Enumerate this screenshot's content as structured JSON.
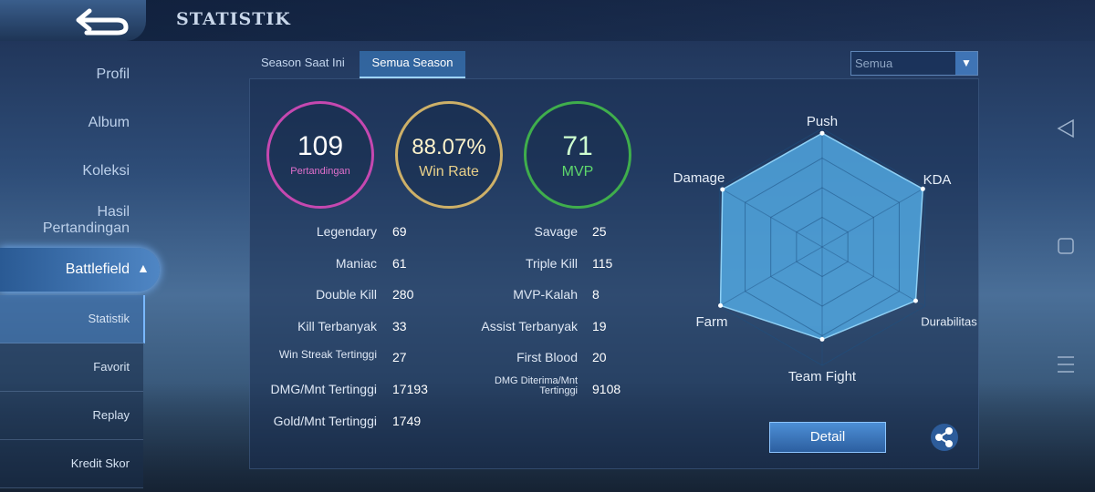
{
  "header": {
    "title": "STATISTIK"
  },
  "sidebar": {
    "items": [
      "Profil",
      "Album",
      "Koleksi",
      "Hasil Pertandingan",
      "Battlefield"
    ],
    "subitems": [
      "Statistik",
      "Favorit",
      "Replay",
      "Kredit Skor"
    ]
  },
  "tabs": [
    "Season Saat Ini",
    "Semua Season"
  ],
  "filter": "Semua",
  "summary": [
    {
      "value": "109",
      "label": "Pertandingan"
    },
    {
      "value": "88.07%",
      "label": "Win Rate"
    },
    {
      "value": "71",
      "label": "MVP"
    }
  ],
  "stats": {
    "left": [
      [
        "Legendary",
        69
      ],
      [
        "Maniac",
        61
      ],
      [
        "Double Kill",
        280
      ],
      [
        "Kill Terbanyak",
        33
      ],
      [
        "Win Streak Tertinggi",
        27
      ],
      [
        "DMG/Mnt Tertinggi",
        17193
      ],
      [
        "Gold/Mnt Tertinggi",
        1749
      ]
    ],
    "right": [
      [
        "Savage",
        25
      ],
      [
        "Triple Kill",
        115
      ],
      [
        "MVP-Kalah",
        8
      ],
      [
        "Assist Terbanyak",
        19
      ],
      [
        "First Blood",
        20
      ],
      [
        "DMG Diterima/Mnt Tertinggi",
        9108
      ]
    ]
  },
  "radar": {
    "axes": [
      "Push",
      "KDA",
      "Durabilitas",
      "Team Fight",
      "Farm",
      "Damage"
    ],
    "values": [
      96,
      98,
      91,
      78,
      99,
      97
    ],
    "rlim": [
      0,
      100
    ],
    "rings": [
      25,
      50,
      75,
      100
    ]
  },
  "button": "Detail"
}
